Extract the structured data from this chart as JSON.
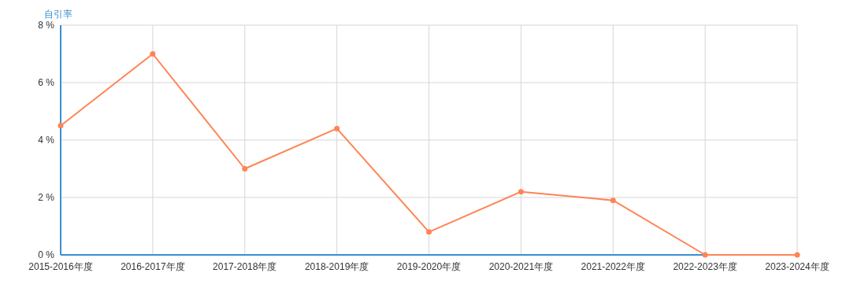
{
  "chart_data": {
    "type": "line",
    "ylabel": "自引率",
    "categories": [
      "2015-2016年度",
      "2016-2017年度",
      "2017-2018年度",
      "2018-2019年度",
      "2019-2020年度",
      "2020-2021年度",
      "2021-2022年度",
      "2022-2023年度",
      "2023-2024年度"
    ],
    "series": [
      {
        "color": "#ff8454",
        "values": [
          4.5,
          7.0,
          3.0,
          4.4,
          0.8,
          2.2,
          1.9,
          0,
          0
        ]
      }
    ],
    "ylim": [
      0,
      8
    ],
    "yticks": [
      {
        "value": 0,
        "label": "0 %"
      },
      {
        "value": 2,
        "label": "2 %"
      },
      {
        "value": 4,
        "label": "4 %"
      },
      {
        "value": 6,
        "label": "6 %"
      },
      {
        "value": 8,
        "label": "8 %"
      }
    ],
    "grid": true,
    "marker": "circle",
    "line_style": "solid"
  }
}
